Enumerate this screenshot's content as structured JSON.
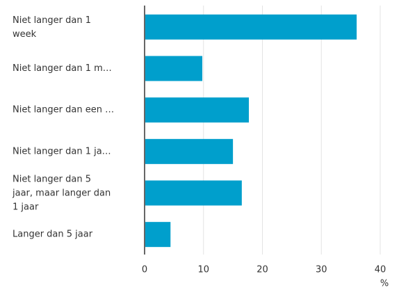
{
  "chart_data": {
    "type": "barh",
    "categories": [
      "Niet langer dan 1\nweek",
      "Niet langer dan 1 m…",
      "Niet langer dan een …",
      "Niet langer dan 1 ja…",
      "Niet langer dan 5\njaar, maar langer dan\n1 jaar",
      "Langer dan 5 jaar"
    ],
    "values": [
      36,
      9.8,
      17.7,
      15,
      16.5,
      4.4
    ],
    "color": "#009fcc",
    "xlim": [
      0,
      40
    ],
    "xticks": [
      0,
      10,
      20,
      30,
      40
    ],
    "xlabel": "%",
    "grid": true
  }
}
